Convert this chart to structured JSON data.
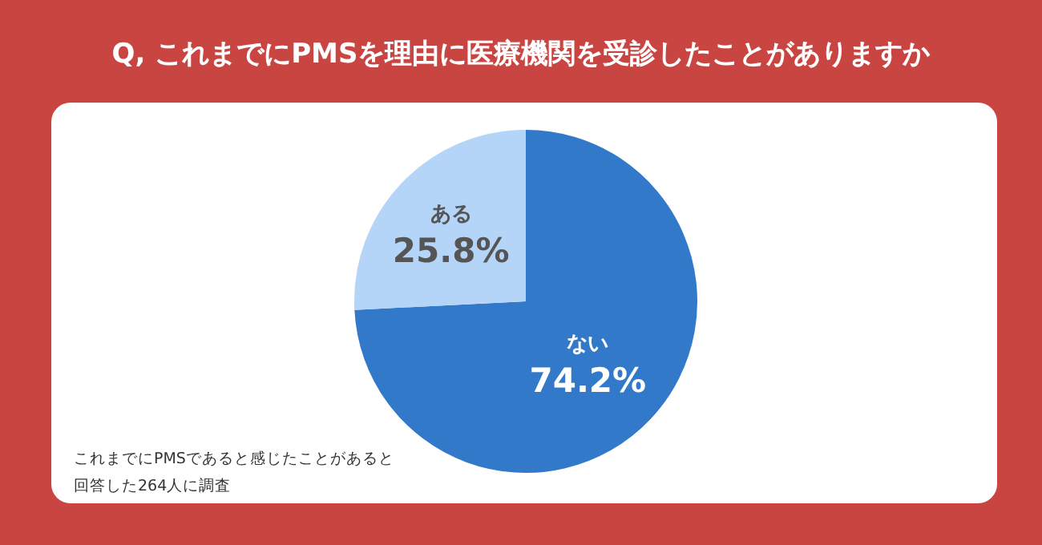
{
  "chart_data": {
    "type": "pie",
    "title": "Q, これまでにPMSを理由に医療機関を受診したことがありますか",
    "categories": [
      "ない",
      "ある"
    ],
    "values": [
      74.2,
      25.8
    ],
    "colors": [
      "#3379c9",
      "#b4d4f8"
    ],
    "value_labels": [
      "74.2%",
      "25.8%"
    ],
    "legend": false,
    "annotations": [
      "これまでにPMSであると感じたことがあると回答した264人に調査"
    ]
  }
}
